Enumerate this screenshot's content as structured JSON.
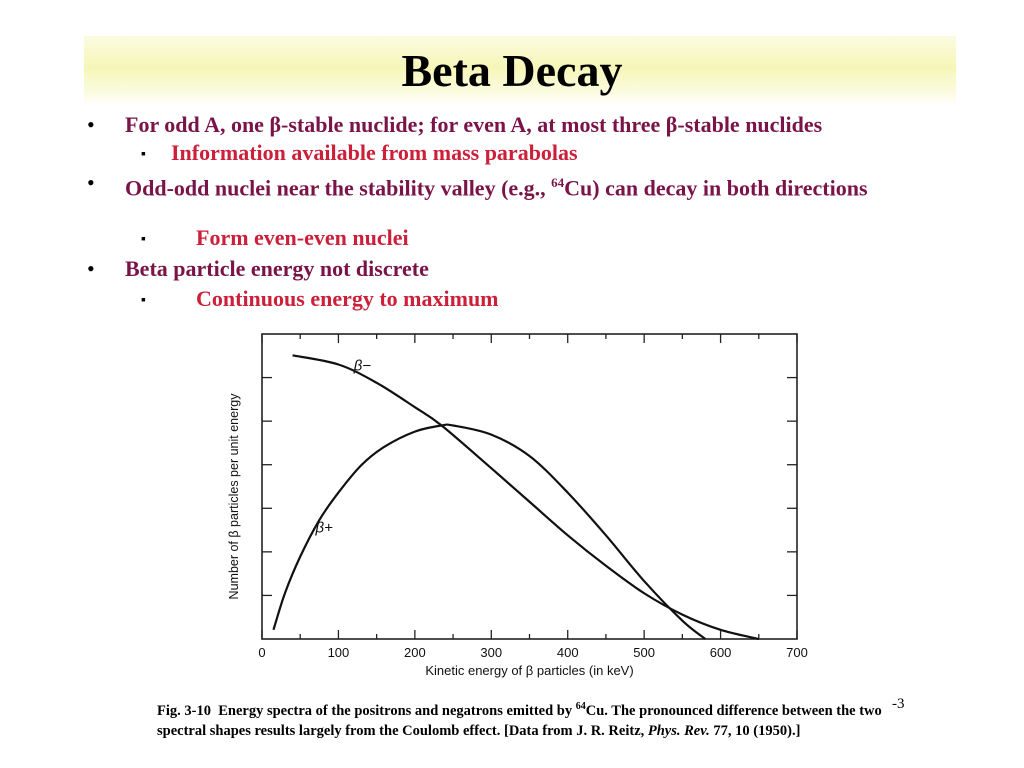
{
  "slide": {
    "title": "Beta Decay",
    "page_number": "-3",
    "bullets": [
      {
        "text": "For odd A, one β-stable nuclide; for even A, at most three β-stable nuclides"
      },
      {
        "text": "Information available from mass parabolas"
      },
      {
        "text_pre": "Odd-odd nuclei near the stability valley (e.g., ",
        "sup": "64",
        "text_post": "Cu) can decay in both directions"
      },
      {
        "text": "Form even-even nuclei"
      },
      {
        "text": "Beta particle energy not discrete"
      },
      {
        "text": "Continuous energy to maximum"
      }
    ],
    "bullet_symbol": "•",
    "sub_bullet_symbol": "▪"
  },
  "caption": {
    "fig_label": "Fig. 3-10",
    "part1": "Energy spectra of the positrons and negatrons emitted by ",
    "sup": "64",
    "part2": "Cu. The pronounced difference between the two spectral shapes results largely from the Coulomb effect. [Data from J. R. Reitz, ",
    "journal": "Phys. Rev.",
    "part3": " 77, 10 (1950).]"
  },
  "chart_data": {
    "type": "line",
    "xlabel": "Kinetic energy of β particles (in keV)",
    "ylabel": "Number of β particles per unit energy",
    "xlim": [
      0,
      700
    ],
    "x_ticks": [
      0,
      100,
      200,
      300,
      400,
      500,
      600,
      700
    ],
    "y_ticks_labeled": false,
    "grid": false,
    "series": [
      {
        "name": "β−",
        "x": [
          40,
          100,
          150,
          200,
          235,
          300,
          350,
          400,
          450,
          500,
          550,
          600,
          650
        ],
        "y": [
          0.93,
          0.9,
          0.84,
          0.76,
          0.7,
          0.56,
          0.45,
          0.34,
          0.24,
          0.15,
          0.08,
          0.03,
          0.0
        ]
      },
      {
        "name": "β+",
        "x": [
          15,
          30,
          50,
          75,
          100,
          130,
          160,
          200,
          235,
          250,
          300,
          350,
          400,
          450,
          500,
          550,
          580
        ],
        "y": [
          0.03,
          0.15,
          0.27,
          0.39,
          0.48,
          0.57,
          0.63,
          0.68,
          0.7,
          0.7,
          0.67,
          0.6,
          0.48,
          0.34,
          0.19,
          0.06,
          0.0
        ]
      }
    ],
    "colors": {
      "line": "#111111",
      "axis": "#222222"
    }
  }
}
